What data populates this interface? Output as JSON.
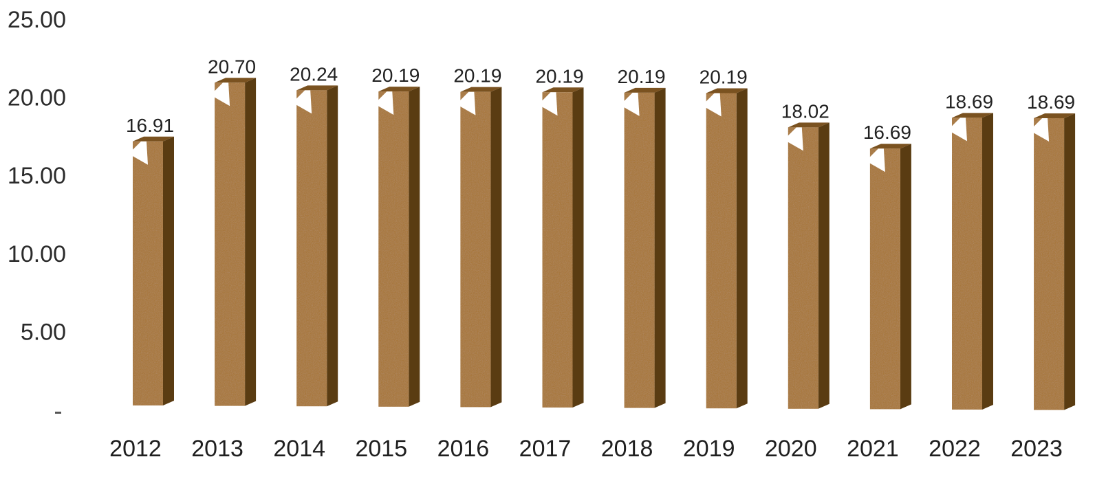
{
  "chart_data": {
    "type": "bar",
    "title": "",
    "xlabel": "",
    "ylabel": "",
    "categories": [
      "2012",
      "2013",
      "2014",
      "2015",
      "2016",
      "2017",
      "2018",
      "2019",
      "2020",
      "2021",
      "2022",
      "2023"
    ],
    "values": [
      16.91,
      20.7,
      20.24,
      20.19,
      20.19,
      20.19,
      20.19,
      20.19,
      18.02,
      16.69,
      18.69,
      18.69
    ],
    "value_labels": [
      "16.91",
      "20.70",
      "20.24",
      "20.19",
      "20.19",
      "20.19",
      "20.19",
      "20.19",
      "18.02",
      "16.69",
      "18.69",
      "18.69"
    ],
    "y_ticks": [
      "25.00",
      "20.00",
      "15.00",
      "10.00",
      "5.00"
    ],
    "y_tick_values": [
      25,
      20,
      15,
      10,
      5
    ],
    "ylim": [
      0,
      25
    ],
    "grid": false,
    "legend": "none",
    "colors": {
      "bar_front": "#a8742f",
      "bar_side": "#5a3c12",
      "bar_top": "#7a5220",
      "bar_noise": "#c08a45"
    }
  }
}
